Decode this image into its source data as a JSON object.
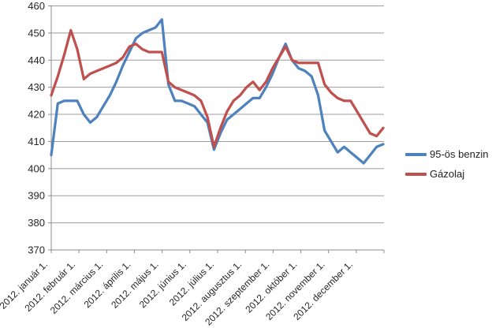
{
  "chart_data": {
    "type": "line",
    "grid": "horizontal",
    "legend_position": "right",
    "ylim": [
      370,
      460
    ],
    "y_ticks": [
      370,
      380,
      390,
      400,
      410,
      420,
      430,
      440,
      450,
      460
    ],
    "x_labels": [
      "2012. január 1.",
      "2012. február 1.",
      "2012. március 1.",
      "2012. április 1.",
      "2012. május 1.",
      "2012. június 1.",
      "2012. július 1.",
      "2012. augusztus 1.",
      "2012. szeptember 1.",
      "2012. október 1.",
      "2012. november 1.",
      "2012. december 1."
    ],
    "x_resolution": "weekly",
    "series": [
      {
        "name": "95-ös benzin",
        "color": "#4F81BD",
        "values": [
          405,
          424,
          425,
          425,
          425,
          420,
          417,
          419,
          423,
          427,
          432,
          438,
          443,
          448,
          450,
          451,
          452,
          455,
          431,
          425,
          425,
          424,
          423,
          420,
          417,
          407,
          413,
          418,
          420,
          422,
          424,
          426,
          426,
          430,
          435,
          441,
          446,
          440,
          437,
          436,
          434,
          427,
          414,
          410,
          406,
          408,
          406,
          404,
          402,
          405,
          408,
          409
        ]
      },
      {
        "name": "Gázolaj",
        "color": "#C0504D",
        "values": [
          427,
          434,
          442,
          451,
          444,
          433,
          435,
          436,
          437,
          438,
          439,
          441,
          445,
          446,
          444,
          443,
          443,
          443,
          432,
          430,
          429,
          428,
          427,
          425,
          419,
          408,
          415,
          421,
          425,
          427,
          430,
          432,
          429,
          432,
          437,
          441,
          445,
          440,
          439,
          439,
          439,
          439,
          431,
          428,
          426,
          425,
          425,
          421,
          417,
          413,
          412,
          415
        ]
      }
    ]
  },
  "colors": {
    "background": "#FFFFFF",
    "grid": "#9C9C9C",
    "axis": "#8C8C8C",
    "text": "#262626"
  }
}
